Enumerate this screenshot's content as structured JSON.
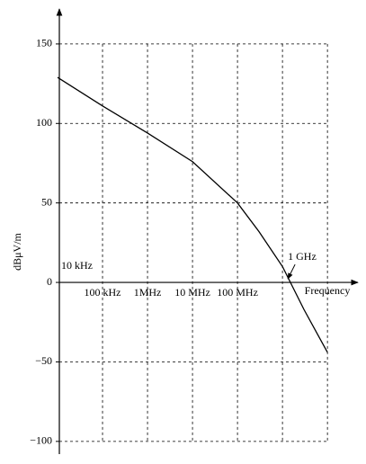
{
  "chart_data": {
    "type": "line",
    "x_label": "Frequency",
    "y_label": "dBμV/m",
    "x_scale": "log",
    "xlim": [
      10000,
      30000000000
    ],
    "ylim": [
      -108,
      172
    ],
    "xticks": [
      {
        "value": 100000,
        "label": "100 kHz"
      },
      {
        "value": 1000000,
        "label": "1MHz"
      },
      {
        "value": 10000000,
        "label": "10 MHz"
      },
      {
        "value": 100000000,
        "label": "100 MHz"
      }
    ],
    "xgrid": [
      100000,
      1000000,
      10000000,
      100000000,
      1000000000,
      10000000000
    ],
    "yticks": [
      {
        "value": -100,
        "label": "−100"
      },
      {
        "value": -50,
        "label": "−50"
      },
      0,
      50,
      100,
      150
    ],
    "grid": true,
    "series": [
      {
        "color": "#000000",
        "x": [
          10000,
          100000,
          1000000,
          10000000,
          100000000,
          300000000,
          1000000000,
          3000000000,
          10000000000
        ],
        "values": [
          129,
          111,
          94,
          76,
          50,
          32,
          10,
          -17,
          -44
        ]
      }
    ],
    "annotations": [
      {
        "text": "10 kHz",
        "x": 10000
      },
      {
        "text": "1 GHz",
        "x": 1000000000
      }
    ]
  }
}
